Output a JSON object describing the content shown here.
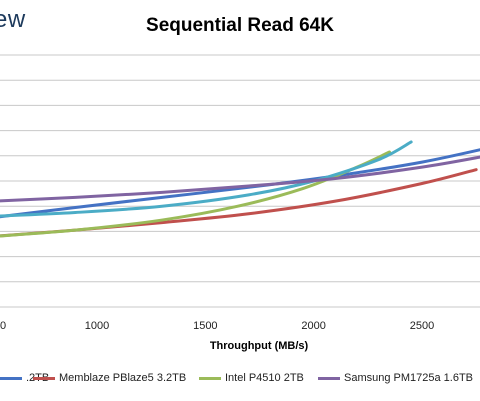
{
  "header": {
    "logo_text": "ew"
  },
  "chart_data": {
    "type": "line",
    "title": "Sequential Read 64K",
    "xlabel": "Throughput (MB/s)",
    "ylabel": "",
    "x_ticks": [
      1000,
      1500,
      2000,
      2500
    ],
    "x_tick_labels": [
      "1000",
      "1500",
      "2000",
      "2500"
    ],
    "grid": "horizontal",
    "legend_position": "bottom",
    "series": [
      {
        "name": ".2TB",
        "color": "#4472c4",
        "x": [
          520,
          900,
          1300,
          1700,
          2100,
          2500,
          2850
        ],
        "y": [
          0.645,
          0.605,
          0.565,
          0.525,
          0.48,
          0.425,
          0.36
        ]
      },
      {
        "name": "Memblaze PBlaze5 3.2TB",
        "color": "#c0504d",
        "x": [
          520,
          900,
          1300,
          1700,
          2100,
          2500,
          2750
        ],
        "y": [
          0.72,
          0.695,
          0.665,
          0.63,
          0.58,
          0.51,
          0.455
        ]
      },
      {
        "name": "Intel P4510 2TB",
        "color": "#9bbb59",
        "x": [
          520,
          900,
          1300,
          1650,
          1950,
          2200,
          2350
        ],
        "y": [
          0.72,
          0.695,
          0.655,
          0.6,
          0.53,
          0.445,
          0.385
        ]
      },
      {
        "name": "",
        "color": "#4bacc6",
        "x": [
          520,
          900,
          1300,
          1700,
          2000,
          2300,
          2450
        ],
        "y": [
          0.64,
          0.625,
          0.6,
          0.555,
          0.5,
          0.415,
          0.345
        ]
      },
      {
        "name": "Samsung PM1725a 1.6TB",
        "color": "#8064a2",
        "x": [
          520,
          900,
          1300,
          1700,
          2100,
          2500,
          2800
        ],
        "y": [
          0.58,
          0.565,
          0.545,
          0.52,
          0.49,
          0.445,
          0.4
        ]
      }
    ]
  },
  "legend": [
    {
      "label": ".2TB",
      "color": "#4472c4"
    },
    {
      "label": "Memblaze PBlaze5 3.2TB",
      "color": "#c0504d"
    },
    {
      "label": "Intel P4510 2TB",
      "color": "#9bbb59"
    },
    {
      "label": "Samsung PM1725a 1.6TB",
      "color": "#8064a2"
    }
  ]
}
